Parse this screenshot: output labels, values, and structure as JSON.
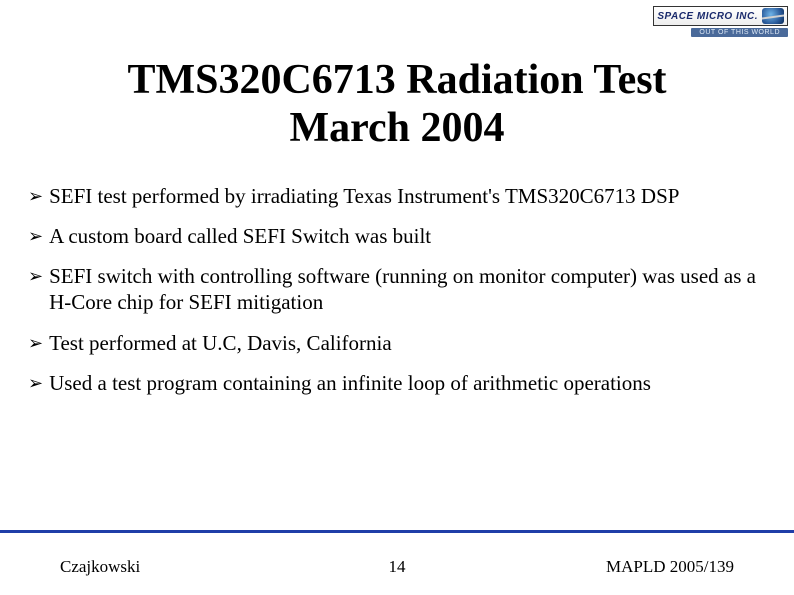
{
  "logo": {
    "company": "SPACE MICRO INC.",
    "tagline": "OUT OF THIS WORLD"
  },
  "title": {
    "line1": "TMS320C6713 Radiation Test",
    "line2": "March 2004"
  },
  "bullets": [
    "SEFI test performed by irradiating Texas Instrument's TMS320C6713 DSP",
    "A custom board called SEFI Switch was built",
    "SEFI switch with controlling software (running on monitor computer) was used as a H-Core chip for SEFI mitigation",
    "Test performed at U.C, Davis, California",
    "Used a test program containing an infinite loop of  arithmetic operations"
  ],
  "footer": {
    "author": "Czajkowski",
    "page": "14",
    "conference": "MAPLD 2005/139"
  },
  "style": {
    "title_fontsize": 42,
    "body_fontsize": 21,
    "footer_fontsize": 17,
    "rule_color": "#1f3ea8",
    "background": "#ffffff",
    "text_color": "#000000",
    "bullet_marker": "➢"
  }
}
